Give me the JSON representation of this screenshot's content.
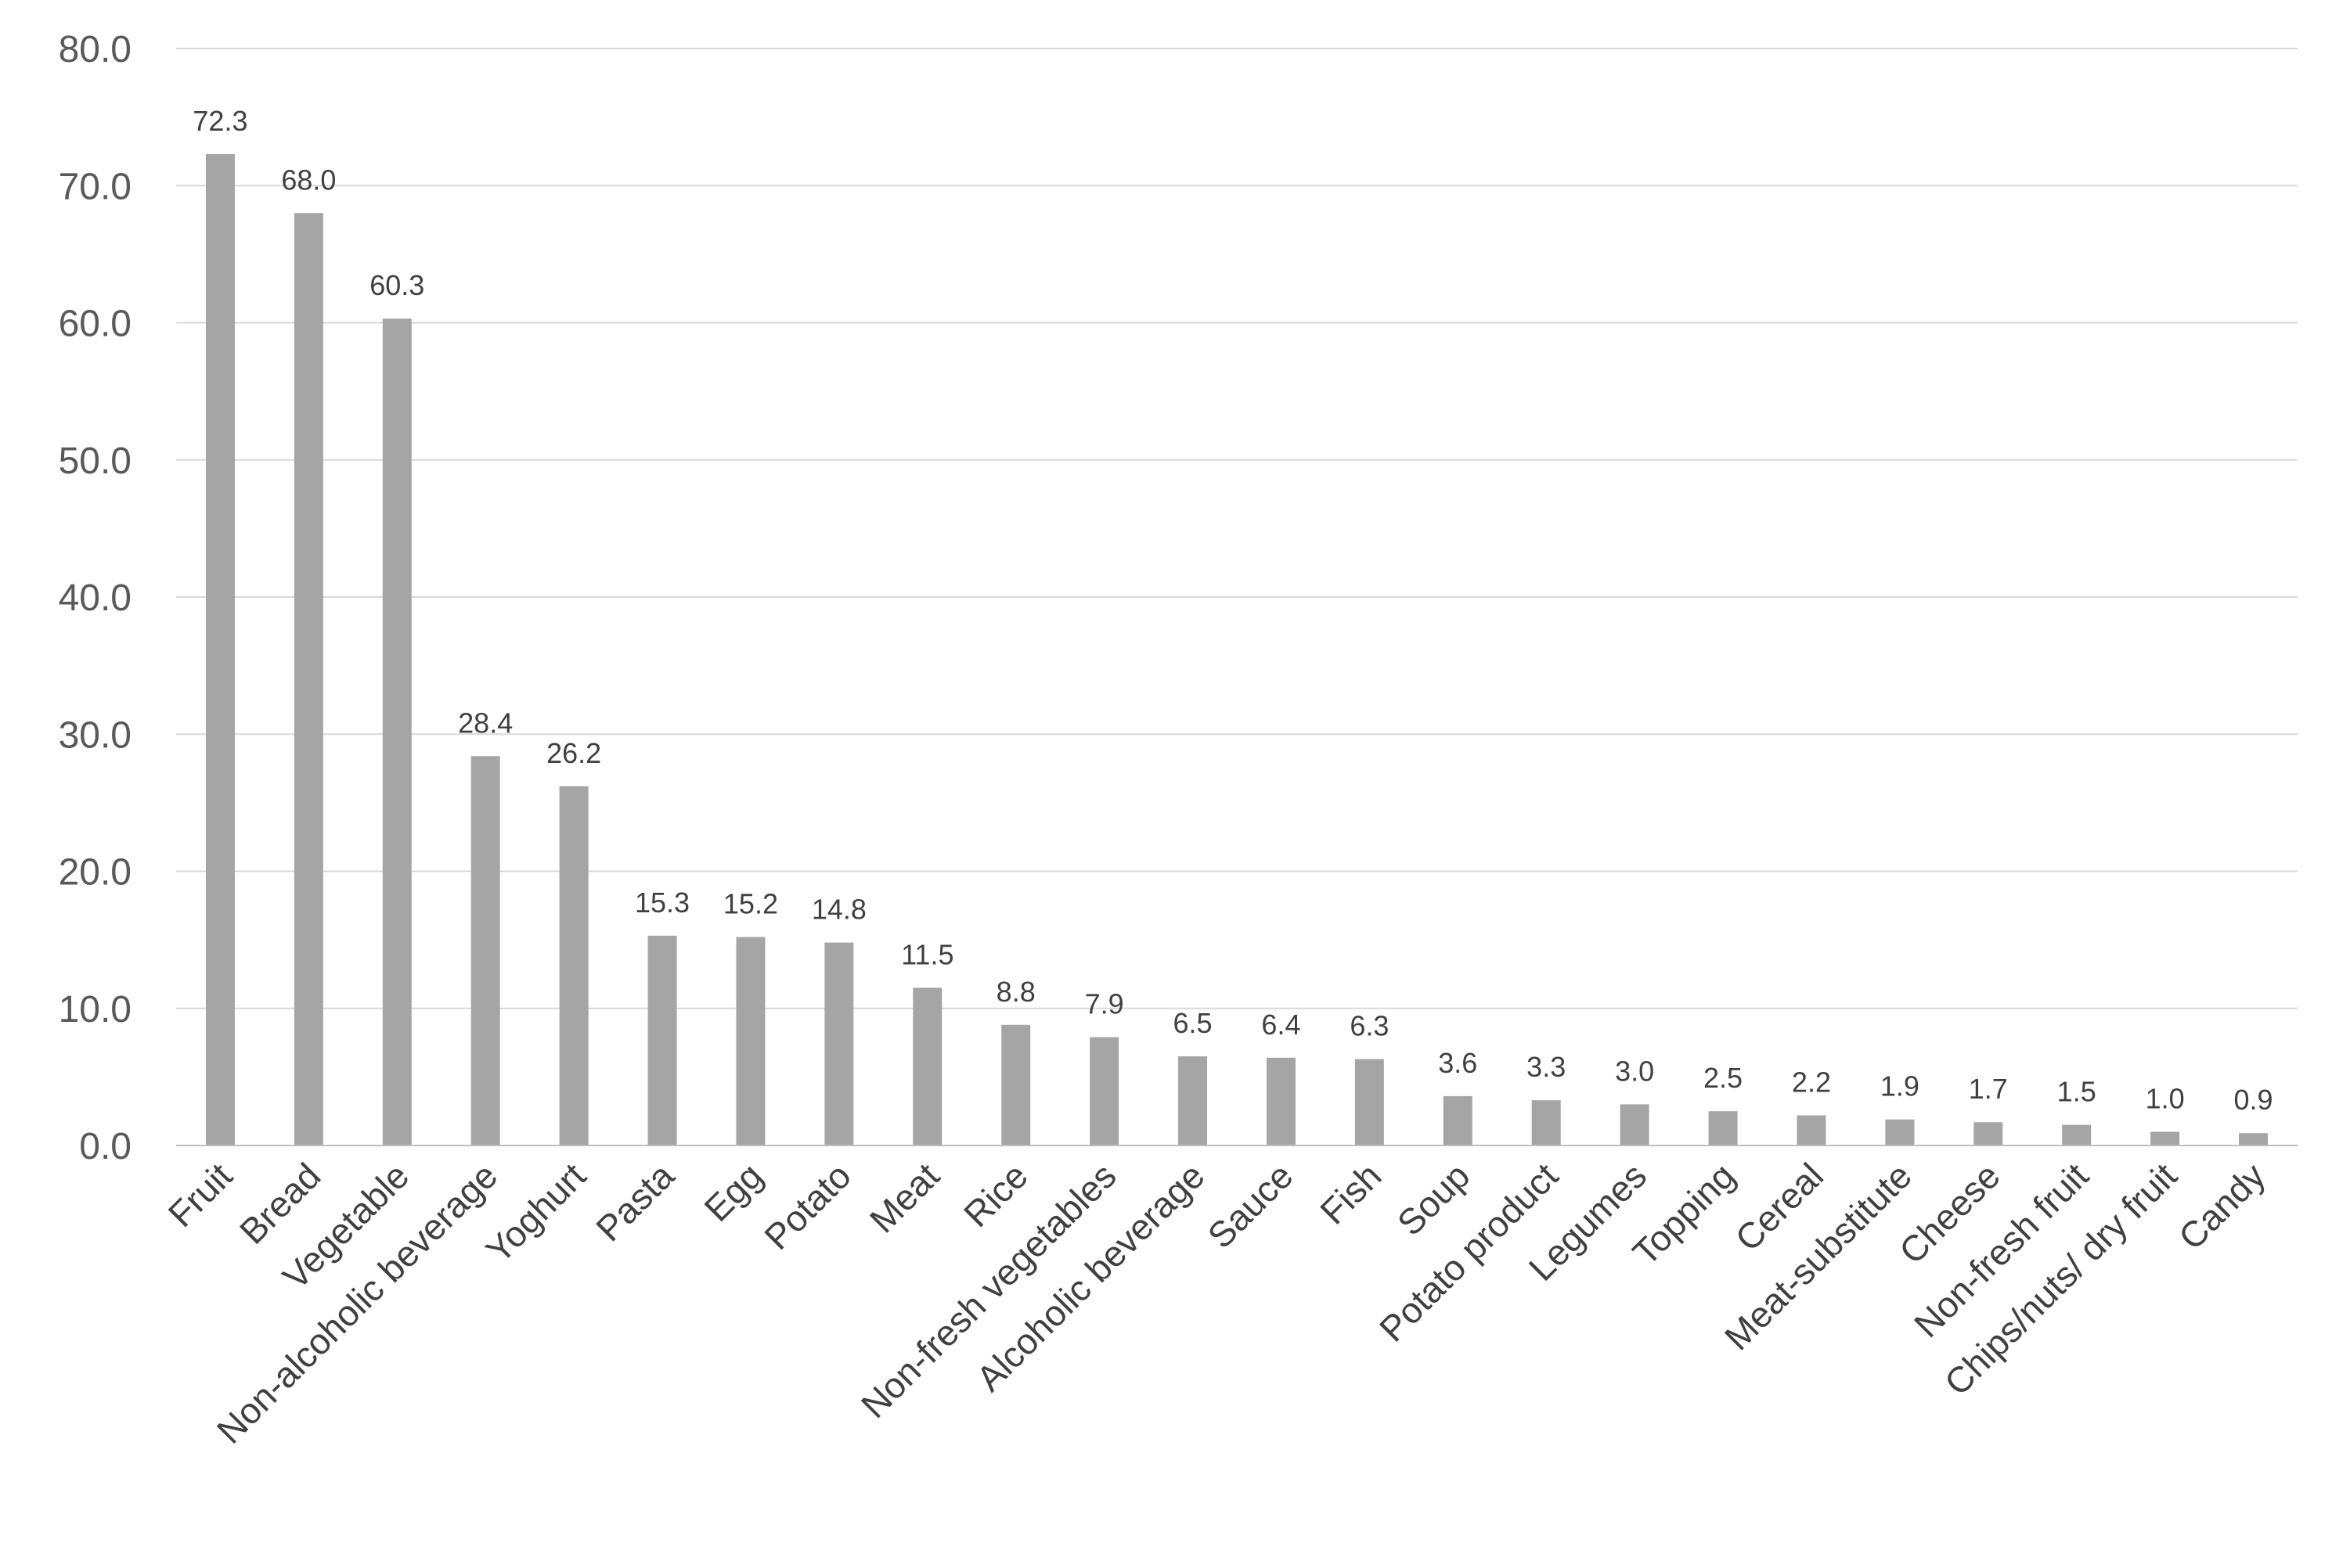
{
  "chart_data": {
    "type": "bar",
    "title": "",
    "xlabel": "",
    "ylabel": "",
    "ylim": [
      0,
      80
    ],
    "ytick_step": 10,
    "ytick_format": "fixed1",
    "grid": true,
    "legend": "none",
    "bar_color": "#a5a5a5",
    "gridline_color": "#d9d9d9",
    "categories": [
      "Fruit",
      "Bread",
      "Vegetable",
      "Non-alcoholic beverage",
      "Yoghurt",
      "Pasta",
      "Egg",
      "Potato",
      "Meat",
      "Rice",
      "Non-fresh vegetables",
      "Alcoholic beverage",
      "Sauce",
      "Fish",
      "Soup",
      "Potato product",
      "Legumes",
      "Topping",
      "Cereal",
      "Meat-substitute",
      "Cheese",
      "Non-fresh fruit",
      "Chips/nuts/ dry fruit",
      "Candy"
    ],
    "values": [
      72.3,
      68.0,
      60.3,
      28.4,
      26.2,
      15.3,
      15.2,
      14.8,
      11.5,
      8.8,
      7.9,
      6.5,
      6.4,
      6.3,
      3.6,
      3.3,
      3.0,
      2.5,
      2.2,
      1.9,
      1.7,
      1.5,
      1.0,
      0.9
    ],
    "data_labels": [
      "72.3",
      "68.0",
      "60.3",
      "28.4",
      "26.2",
      "15.3",
      "15.2",
      "14.8",
      "11.5",
      "8.8",
      "7.9",
      "6.5",
      "6.4",
      "6.3",
      "3.6",
      "3.3",
      "3.0",
      "2.5",
      "2.2",
      "1.9",
      "1.7",
      "1.5",
      "1.0",
      "0.9"
    ]
  }
}
